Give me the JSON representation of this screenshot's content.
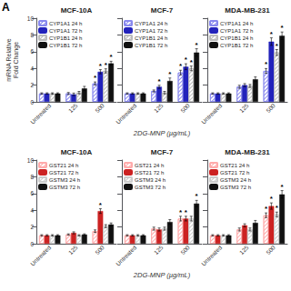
{
  "chart_data": [
    {
      "type": "bar",
      "title": "MCF-10A",
      "panel_label": "A",
      "ylabel": "mRNA Relative\nFold Change",
      "categories": [
        "Untreated",
        "125",
        "500"
      ],
      "series": [
        {
          "name": "CYP1A1 24 h",
          "color": "#8888ee",
          "values": [
            1.0,
            1.0,
            2.2
          ],
          "errors": [
            0.08,
            0.12,
            0.18
          ],
          "stars": [
            false,
            false,
            true
          ]
        },
        {
          "name": "CYP1A1 72 h",
          "color": "#2222bb",
          "values": [
            1.0,
            0.9,
            3.6
          ],
          "errors": [
            0.08,
            0.15,
            0.25
          ],
          "stars": [
            false,
            false,
            true
          ]
        },
        {
          "name": "CYP1B1 24 h",
          "color": "#bbbbbb",
          "values": [
            1.0,
            1.1,
            3.7
          ],
          "errors": [
            0.08,
            0.15,
            0.25
          ],
          "stars": [
            false,
            false,
            true
          ]
        },
        {
          "name": "CYP1B1 72 h",
          "color": "#111111",
          "values": [
            1.0,
            1.6,
            4.6
          ],
          "errors": [
            0.08,
            0.25,
            0.25
          ],
          "stars": [
            false,
            false,
            true
          ]
        }
      ],
      "annotation": "*",
      "ylim": [
        0,
        10
      ],
      "yticks": [
        0,
        2,
        4,
        6,
        8,
        10
      ],
      "grid": false,
      "legend": "upper left"
    },
    {
      "type": "bar",
      "title": "MCF-7",
      "xlabel": "2DG-MNP (µg/mL)",
      "categories": [
        "Untreated",
        "125",
        "500"
      ],
      "series": [
        {
          "name": "CYP1A1 24 h",
          "color": "#8888ee",
          "values": [
            1.0,
            1.3,
            3.5
          ],
          "errors": [
            0.08,
            0.12,
            0.28
          ],
          "stars": [
            false,
            false,
            true
          ]
        },
        {
          "name": "CYP1A1 72 h",
          "color": "#2222bb",
          "values": [
            1.0,
            1.8,
            4.2
          ],
          "errors": [
            0.08,
            0.18,
            0.35
          ],
          "stars": [
            false,
            true,
            true
          ]
        },
        {
          "name": "CYP1B1 24 h",
          "color": "#bbbbbb",
          "values": [
            1.0,
            1.1,
            4.0
          ],
          "errors": [
            0.08,
            0.15,
            0.28
          ],
          "stars": [
            false,
            false,
            true
          ]
        },
        {
          "name": "CYP1B1 72 h",
          "color": "#111111",
          "values": [
            1.0,
            2.5,
            5.9
          ],
          "errors": [
            0.08,
            0.35,
            0.45
          ],
          "stars": [
            false,
            true,
            true
          ]
        }
      ],
      "annotation": "*",
      "ylim": [
        0,
        10
      ],
      "yticks": [
        0,
        2,
        4,
        6,
        8,
        10
      ],
      "grid": false,
      "legend": "upper left",
      "tick_labels": "x"
    },
    {
      "type": "bar",
      "title": "MDA-MB-231",
      "categories": [
        "Untreated",
        "125",
        "500"
      ],
      "series": [
        {
          "name": "CYP1A1 24 h",
          "color": "#8888ee",
          "values": [
            1.0,
            1.8,
            3.7
          ],
          "errors": [
            0.08,
            0.18,
            0.28
          ],
          "stars": [
            false,
            false,
            true
          ]
        },
        {
          "name": "CYP1A1 72 h",
          "color": "#2222bb",
          "values": [
            1.0,
            2.0,
            7.2
          ],
          "errors": [
            0.08,
            0.18,
            0.45
          ],
          "stars": [
            false,
            false,
            true
          ]
        },
        {
          "name": "CYP1B1 24 h",
          "color": "#bbbbbb",
          "values": [
            1.0,
            1.9,
            5.9
          ],
          "errors": [
            0.08,
            0.18,
            0.35
          ],
          "stars": [
            false,
            false,
            true
          ]
        },
        {
          "name": "CYP1B1 72 h",
          "color": "#111111",
          "values": [
            1.0,
            2.7,
            7.9
          ],
          "errors": [
            0.08,
            0.28,
            0.45
          ],
          "stars": [
            false,
            false,
            true
          ]
        }
      ],
      "annotation": "*",
      "ylim": [
        0,
        10
      ],
      "yticks": [
        0,
        2,
        4,
        6,
        8,
        10
      ],
      "grid": false,
      "legend": "upper left",
      "tick_labels": "x"
    },
    {
      "type": "bar",
      "title": "MCF-10A",
      "categories": [
        "Untreated",
        "125",
        "500"
      ],
      "series": [
        {
          "name": "GST21 24 h",
          "color": "#ffaaaa",
          "values": [
            1.0,
            1.1,
            1.5
          ],
          "errors": [
            0.08,
            0.08,
            0.15
          ],
          "stars": [
            false,
            false,
            false
          ]
        },
        {
          "name": "GST21 72 h",
          "color": "#cc2222",
          "values": [
            1.0,
            1.3,
            3.9
          ],
          "errors": [
            0.08,
            0.12,
            0.28
          ],
          "stars": [
            false,
            false,
            true
          ]
        },
        {
          "name": "GSTM3 24 h",
          "color": "#cccccc",
          "values": [
            1.0,
            1.0,
            2.1
          ],
          "errors": [
            0.08,
            0.08,
            0.18
          ],
          "stars": [
            false,
            false,
            false
          ]
        },
        {
          "name": "GSTM3 72 h",
          "color": "#111111",
          "values": [
            1.0,
            1.1,
            2.3
          ],
          "errors": [
            0.08,
            0.08,
            0.18
          ],
          "stars": [
            false,
            false,
            false
          ]
        }
      ],
      "annotation": "*",
      "ylim": [
        0,
        10
      ],
      "yticks": [
        0,
        2,
        4,
        6,
        8,
        10
      ],
      "grid": false,
      "legend": "upper left"
    },
    {
      "type": "bar",
      "title": "MCF-7",
      "xlabel": "2DG-MNP (µg/mL)",
      "categories": [
        "Untreated",
        "125",
        "500"
      ],
      "series": [
        {
          "name": "GST21 24 h",
          "color": "#ffaaaa",
          "values": [
            1.0,
            1.8,
            3.0
          ],
          "errors": [
            0.08,
            0.18,
            0.28
          ],
          "stars": [
            false,
            false,
            true
          ]
        },
        {
          "name": "GST21 72 h",
          "color": "#cc2222",
          "values": [
            1.0,
            1.7,
            3.0
          ],
          "errors": [
            0.08,
            0.18,
            0.28
          ],
          "stars": [
            false,
            false,
            true
          ]
        },
        {
          "name": "GSTM3 24 h",
          "color": "#cccccc",
          "values": [
            1.0,
            1.8,
            3.0
          ],
          "errors": [
            0.08,
            0.18,
            0.28
          ],
          "stars": [
            false,
            false,
            false
          ]
        },
        {
          "name": "GSTM3 72 h",
          "color": "#111111",
          "values": [
            1.0,
            2.6,
            4.8
          ],
          "errors": [
            0.08,
            0.28,
            0.38
          ],
          "stars": [
            false,
            false,
            true
          ]
        }
      ],
      "annotation": "*",
      "ylim": [
        0,
        10
      ],
      "yticks": [
        0,
        2,
        4,
        6,
        8,
        10
      ],
      "grid": false,
      "legend": "upper left",
      "tick_labels": "x"
    },
    {
      "type": "bar",
      "title": "MDA-MB-231",
      "categories": [
        "Untreated",
        "125",
        "500"
      ],
      "series": [
        {
          "name": "GST21 24 h",
          "color": "#ffaaaa",
          "values": [
            1.0,
            1.7,
            3.4
          ],
          "errors": [
            0.08,
            0.18,
            0.28
          ],
          "stars": [
            false,
            false,
            true
          ]
        },
        {
          "name": "GST21 72 h",
          "color": "#cc2222",
          "values": [
            1.0,
            2.2,
            4.5
          ],
          "errors": [
            0.08,
            0.18,
            0.38
          ],
          "stars": [
            false,
            false,
            true
          ]
        },
        {
          "name": "GSTM3 24 h",
          "color": "#cccccc",
          "values": [
            1.0,
            1.7,
            3.5
          ],
          "errors": [
            0.08,
            0.18,
            0.28
          ],
          "stars": [
            false,
            false,
            true
          ]
        },
        {
          "name": "GSTM3 72 h",
          "color": "#111111",
          "values": [
            1.0,
            2.5,
            5.9
          ],
          "errors": [
            0.08,
            0.28,
            0.45
          ],
          "stars": [
            false,
            false,
            true
          ]
        }
      ],
      "annotation": "*",
      "ylim": [
        0,
        10
      ],
      "yticks": [
        0,
        2,
        4,
        6,
        8,
        10
      ],
      "grid": false,
      "legend": "upper left",
      "tick_labels": "x"
    }
  ]
}
